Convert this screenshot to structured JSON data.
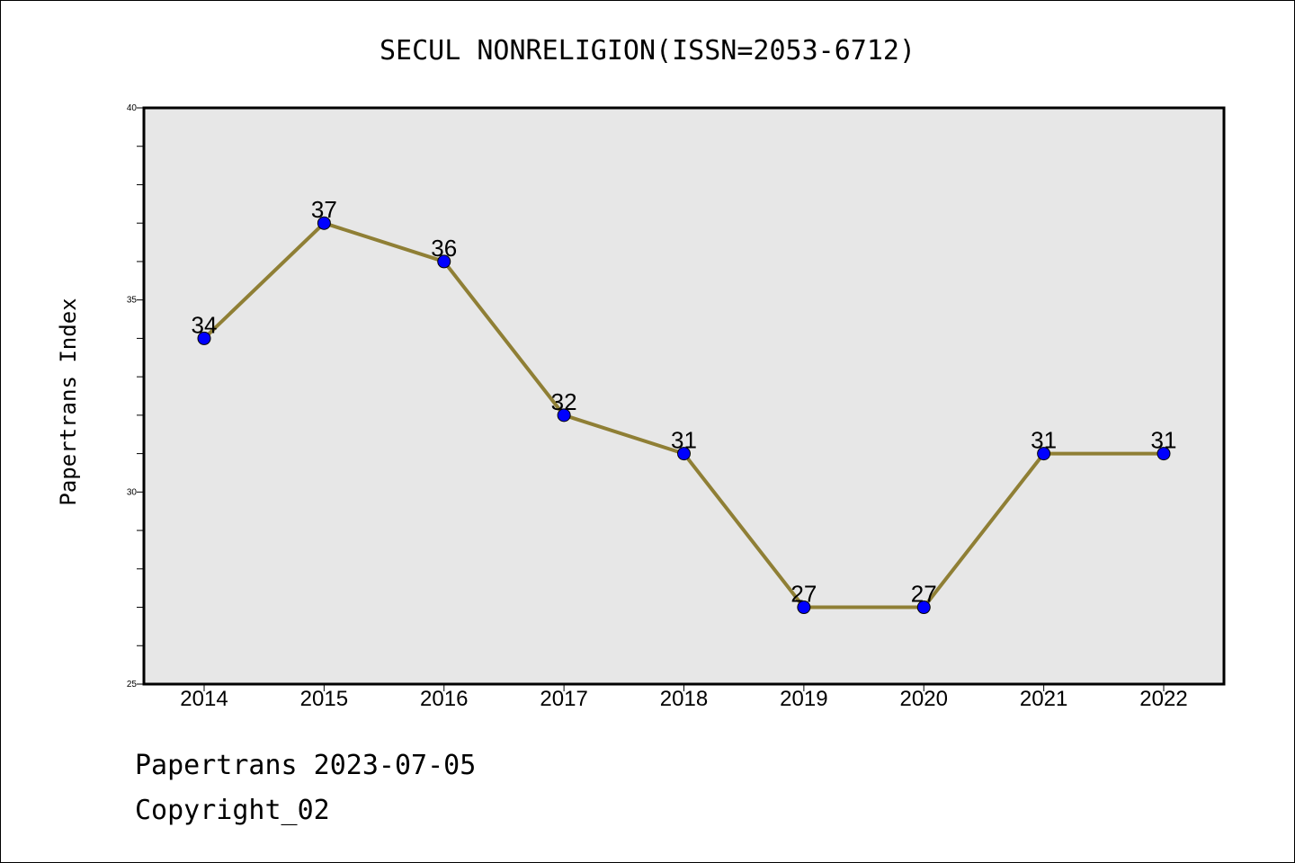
{
  "chart_data": {
    "type": "line",
    "title": "SECUL NONRELIGION(ISSN=2053-6712)",
    "xlabel": "",
    "ylabel": "Papertrans Index",
    "categories": [
      "2014",
      "2015",
      "2016",
      "2017",
      "2018",
      "2019",
      "2020",
      "2021",
      "2022"
    ],
    "series": [
      {
        "values": [
          34,
          37,
          36,
          32,
          31,
          27,
          27,
          31,
          31
        ]
      }
    ],
    "ylim": [
      25,
      40
    ],
    "yticks": [
      25,
      30,
      35,
      40
    ],
    "grid": false,
    "line_color": "#8f7f35",
    "marker_color": "#0000ff",
    "plot_background": "#e7e7e7"
  },
  "footer": {
    "line1": "Papertrans 2023-07-05",
    "line2": "Copyright_02"
  }
}
